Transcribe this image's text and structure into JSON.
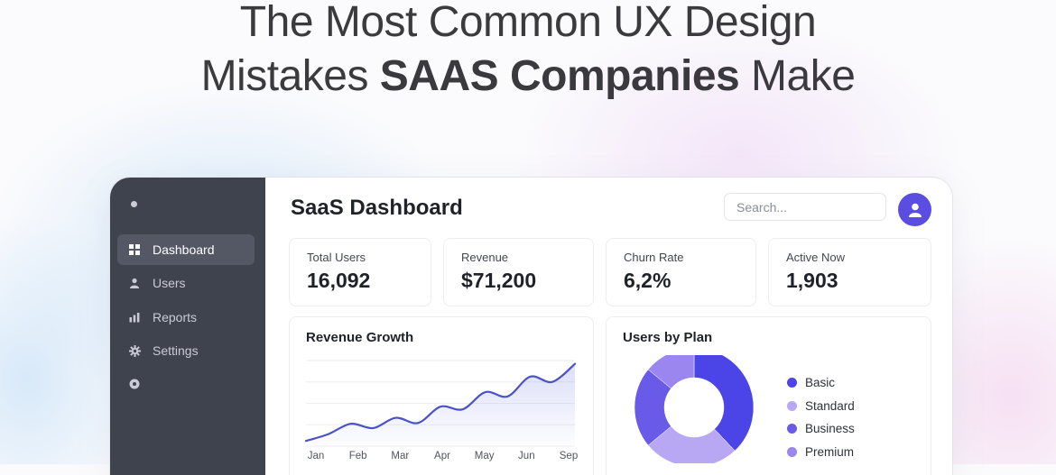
{
  "headline": {
    "line1": "The Most Common UX Design",
    "line2_prefix": "Mistakes ",
    "line2_bold": "SAAS Companies",
    "line2_suffix": " Make"
  },
  "sidebar": {
    "items": [
      {
        "label": "Dashboard",
        "icon": "grid-icon",
        "active": true
      },
      {
        "label": "Users",
        "icon": "user-icon",
        "active": false
      },
      {
        "label": "Reports",
        "icon": "bar-chart-icon",
        "active": false
      },
      {
        "label": "Settings",
        "icon": "gear-icon",
        "active": false
      }
    ]
  },
  "header": {
    "title": "SaaS Dashboard",
    "search_placeholder": "Search..."
  },
  "stats": [
    {
      "label": "Total Users",
      "value": "16,092"
    },
    {
      "label": "Revenue",
      "value": "$71,200"
    },
    {
      "label": "Churn Rate",
      "value": "6,2%"
    },
    {
      "label": "Active Now",
      "value": "1,903"
    }
  ],
  "colors": {
    "accent": "#5a4de0",
    "sidebar": "#3f434d",
    "line": "#4a52c8"
  },
  "chart_data": [
    {
      "type": "line",
      "title": "Revenue Growth",
      "categories": [
        "Jan",
        "Feb",
        "Mar",
        "Apr",
        "May",
        "Jun",
        "Sep"
      ],
      "x": [
        0,
        0.5,
        1,
        1.5,
        2,
        2.5,
        3,
        3.5,
        4,
        4.5,
        5,
        5.5,
        6
      ],
      "y": [
        8,
        24,
        48,
        38,
        62,
        50,
        88,
        82,
        122,
        112,
        158,
        146,
        188
      ],
      "ylim": [
        0,
        200
      ],
      "grid": true,
      "area_fill": true
    },
    {
      "type": "pie",
      "title": "Users by Plan",
      "donut": true,
      "labels": [
        "Basic",
        "Standard",
        "Business",
        "Premium"
      ],
      "values": [
        38,
        26,
        22,
        14
      ],
      "colors": [
        "#4b44e6",
        "#b8a8f4",
        "#6a5ae8",
        "#9a86ee"
      ]
    }
  ]
}
